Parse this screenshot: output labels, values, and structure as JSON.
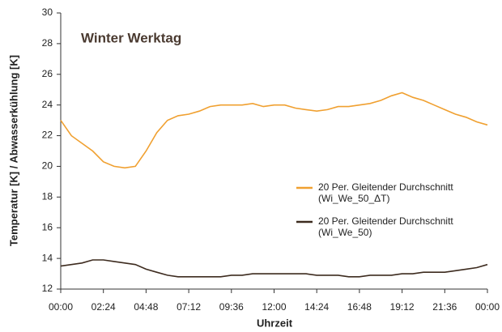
{
  "chart_data": {
    "type": "line",
    "annotation": "Winter Werktag",
    "xlabel": "Uhrzeit",
    "ylabel": "Temperatur [K] / Abwasserkühlung [K]",
    "x": [
      0,
      36,
      72,
      108,
      144,
      180,
      216,
      252,
      288,
      324,
      360,
      396,
      432,
      468,
      504,
      540,
      576,
      612,
      648,
      684,
      720,
      756,
      792,
      828,
      864,
      900,
      936,
      972,
      1008,
      1044,
      1080,
      1116,
      1152,
      1188,
      1224,
      1260,
      1296,
      1332,
      1368,
      1404,
      1440
    ],
    "series": [
      {
        "name": "20 Per. Gleitender Durchschnitt (Wi_We_50_ΔT)",
        "color": "#f0a030",
        "values": [
          23.0,
          22.0,
          21.5,
          21.0,
          20.3,
          20.0,
          19.9,
          20.0,
          21.0,
          22.2,
          23.0,
          23.3,
          23.4,
          23.6,
          23.9,
          24.0,
          24.0,
          24.0,
          24.1,
          23.9,
          24.0,
          24.0,
          23.8,
          23.7,
          23.6,
          23.7,
          23.9,
          23.9,
          24.0,
          24.1,
          24.3,
          24.6,
          24.8,
          24.5,
          24.3,
          24.0,
          23.7,
          23.4,
          23.2,
          22.9,
          22.7
        ]
      },
      {
        "name": "20 Per. Gleitender Durchschnitt (Wi_We_50)",
        "color": "#3d2b1f",
        "values": [
          13.5,
          13.6,
          13.7,
          13.9,
          13.9,
          13.8,
          13.7,
          13.6,
          13.3,
          13.1,
          12.9,
          12.8,
          12.8,
          12.8,
          12.8,
          12.8,
          12.9,
          12.9,
          13.0,
          13.0,
          13.0,
          13.0,
          13.0,
          13.0,
          12.9,
          12.9,
          12.9,
          12.8,
          12.8,
          12.9,
          12.9,
          12.9,
          13.0,
          13.0,
          13.1,
          13.1,
          13.1,
          13.2,
          13.3,
          13.4,
          13.6
        ]
      }
    ],
    "xlim": [
      0,
      1440
    ],
    "xticks": [
      {
        "value": 0,
        "label": "00:00"
      },
      {
        "value": 144,
        "label": "02:24"
      },
      {
        "value": 288,
        "label": "04:48"
      },
      {
        "value": 432,
        "label": "07:12"
      },
      {
        "value": 576,
        "label": "09:36"
      },
      {
        "value": 720,
        "label": "12:00"
      },
      {
        "value": 864,
        "label": "14:24"
      },
      {
        "value": 1008,
        "label": "16:48"
      },
      {
        "value": 1152,
        "label": "19:12"
      },
      {
        "value": 1296,
        "label": "21:36"
      },
      {
        "value": 1440,
        "label": "00:00"
      }
    ],
    "ylim": [
      12,
      30
    ],
    "yticks": [
      12,
      14,
      16,
      18,
      20,
      22,
      24,
      26,
      28,
      30
    ],
    "grid": false
  }
}
